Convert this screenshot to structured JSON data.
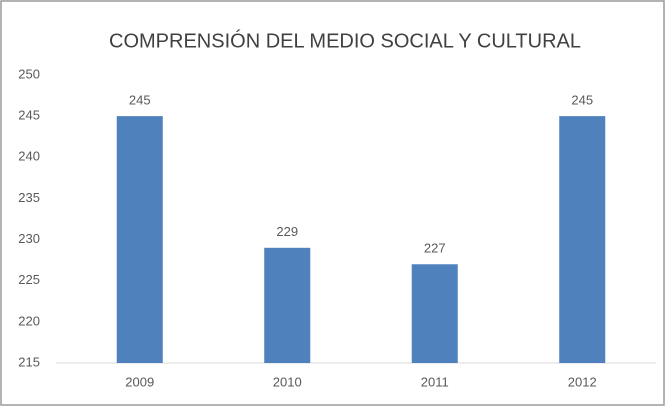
{
  "chart_data": {
    "type": "bar",
    "title": "COMPRENSIÓN DEL MEDIO SOCIAL Y CULTURAL",
    "categories": [
      "2009",
      "2010",
      "2011",
      "2012"
    ],
    "values": [
      245,
      229,
      227,
      245
    ],
    "color": "#4f81bd",
    "ylim": [
      215,
      250
    ],
    "yticks": [
      215,
      220,
      225,
      230,
      235,
      240,
      245,
      250
    ],
    "grid": false,
    "data_labels": true
  }
}
